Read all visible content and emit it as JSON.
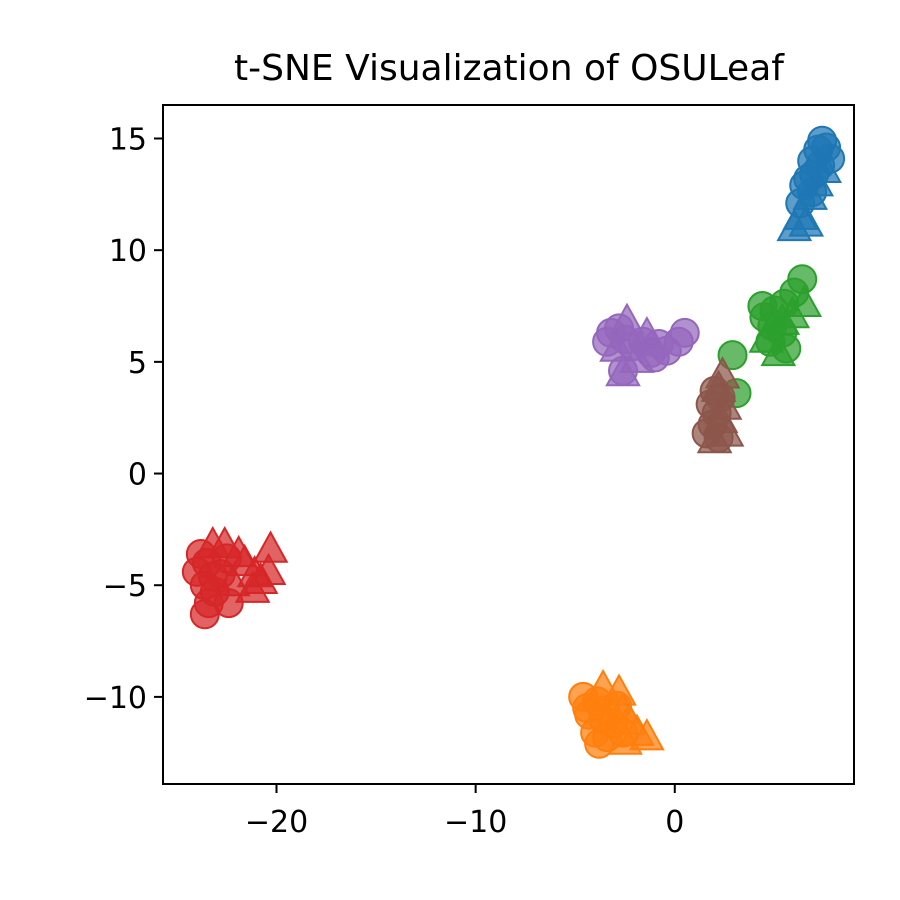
{
  "chart_data": {
    "type": "scatter",
    "title": "t-SNE Visualization of OSULeaf",
    "xlabel": "",
    "ylabel": "",
    "xlim": [
      -25.7,
      9.0
    ],
    "ylim": [
      -13.9,
      16.5
    ],
    "xticks": [
      -20,
      -10,
      0
    ],
    "yticks": [
      -10,
      -5,
      0,
      5,
      10,
      15
    ],
    "xtick_labels": [
      "−20",
      "−10",
      "0"
    ],
    "ytick_labels": [
      "−10",
      "−5",
      "0",
      "5",
      "10",
      "15"
    ],
    "grid": false,
    "legend": "none",
    "marker_shapes": [
      "circle",
      "triangle"
    ],
    "series": [
      {
        "color": "#1f77b4",
        "points": [
          [
            7.4,
            14.9,
            "c"
          ],
          [
            7.6,
            14.6,
            "c"
          ],
          [
            7.2,
            14.5,
            "c"
          ],
          [
            7.8,
            14.1,
            "c"
          ],
          [
            6.9,
            14.0,
            "c"
          ],
          [
            7.3,
            13.8,
            "c"
          ],
          [
            7.0,
            13.4,
            "c"
          ],
          [
            6.7,
            13.2,
            "c"
          ],
          [
            6.5,
            12.9,
            "c"
          ],
          [
            6.9,
            12.6,
            "c"
          ],
          [
            6.3,
            12.1,
            "c"
          ],
          [
            7.5,
            13.6,
            "t"
          ],
          [
            7.1,
            13.0,
            "t"
          ],
          [
            6.8,
            12.4,
            "t"
          ],
          [
            6.3,
            11.5,
            "t"
          ],
          [
            6.0,
            11.0,
            "t"
          ],
          [
            6.6,
            11.2,
            "t"
          ]
        ]
      },
      {
        "color": "#ff7f0e",
        "points": [
          [
            -4.6,
            -10.0,
            "c"
          ],
          [
            -4.3,
            -10.8,
            "c"
          ],
          [
            -4.4,
            -10.5,
            "c"
          ],
          [
            -3.9,
            -10.2,
            "c"
          ],
          [
            -3.6,
            -11.0,
            "c"
          ],
          [
            -4.0,
            -11.6,
            "c"
          ],
          [
            -3.8,
            -12.1,
            "c"
          ],
          [
            -3.4,
            -11.8,
            "c"
          ],
          [
            -3.1,
            -11.2,
            "c"
          ],
          [
            -3.5,
            -10.6,
            "c"
          ],
          [
            -2.9,
            -10.4,
            "c"
          ],
          [
            -2.6,
            -11.6,
            "c"
          ],
          [
            -3.6,
            -9.6,
            "t"
          ],
          [
            -2.8,
            -9.8,
            "t"
          ],
          [
            -2.6,
            -10.6,
            "t"
          ],
          [
            -2.3,
            -11.1,
            "t"
          ],
          [
            -1.9,
            -11.6,
            "t"
          ],
          [
            -1.4,
            -11.8,
            "t"
          ],
          [
            -2.5,
            -12.0,
            "t"
          ]
        ]
      },
      {
        "color": "#2ca02c",
        "points": [
          [
            6.4,
            8.7,
            "c"
          ],
          [
            6.0,
            8.1,
            "c"
          ],
          [
            5.5,
            7.6,
            "c"
          ],
          [
            5.0,
            7.3,
            "c"
          ],
          [
            4.5,
            7.0,
            "c"
          ],
          [
            4.4,
            7.5,
            "c"
          ],
          [
            4.9,
            6.6,
            "c"
          ],
          [
            5.4,
            6.3,
            "c"
          ],
          [
            4.8,
            5.9,
            "c"
          ],
          [
            5.6,
            5.6,
            "c"
          ],
          [
            2.9,
            5.3,
            "c"
          ],
          [
            3.1,
            3.6,
            "c"
          ],
          [
            6.5,
            7.6,
            "t"
          ],
          [
            5.9,
            7.1,
            "t"
          ],
          [
            5.4,
            6.8,
            "t"
          ],
          [
            4.6,
            6.0,
            "t"
          ],
          [
            5.2,
            5.4,
            "t"
          ]
        ]
      },
      {
        "color": "#d62728",
        "points": [
          [
            -23.8,
            -3.6,
            "c"
          ],
          [
            -24.0,
            -4.4,
            "c"
          ],
          [
            -23.5,
            -4.0,
            "c"
          ],
          [
            -23.2,
            -4.6,
            "c"
          ],
          [
            -23.6,
            -5.0,
            "c"
          ],
          [
            -23.1,
            -5.3,
            "c"
          ],
          [
            -23.4,
            -5.8,
            "c"
          ],
          [
            -23.6,
            -6.3,
            "c"
          ],
          [
            -22.4,
            -5.8,
            "c"
          ],
          [
            -22.8,
            -4.5,
            "c"
          ],
          [
            -22.5,
            -3.8,
            "c"
          ],
          [
            -22.6,
            -3.2,
            "t"
          ],
          [
            -21.9,
            -3.6,
            "t"
          ],
          [
            -21.6,
            -4.0,
            "t"
          ],
          [
            -21.1,
            -4.5,
            "t"
          ],
          [
            -20.3,
            -3.4,
            "t"
          ],
          [
            -20.4,
            -4.4,
            "t"
          ],
          [
            -20.8,
            -4.8,
            "t"
          ],
          [
            -21.2,
            -5.2,
            "t"
          ],
          [
            -22.2,
            -4.9,
            "t"
          ],
          [
            -23.2,
            -3.2,
            "t"
          ]
        ]
      },
      {
        "color": "#9467bd",
        "points": [
          [
            -3.2,
            6.3,
            "c"
          ],
          [
            -2.8,
            6.5,
            "c"
          ],
          [
            -2.5,
            6.0,
            "c"
          ],
          [
            -2.1,
            5.7,
            "c"
          ],
          [
            -1.6,
            5.9,
            "c"
          ],
          [
            -1.2,
            5.4,
            "c"
          ],
          [
            -0.8,
            5.8,
            "c"
          ],
          [
            -0.4,
            5.5,
            "c"
          ],
          [
            0.2,
            5.9,
            "c"
          ],
          [
            0.5,
            6.3,
            "c"
          ],
          [
            -2.6,
            4.6,
            "c"
          ],
          [
            -1.0,
            5.2,
            "c"
          ],
          [
            -3.4,
            5.9,
            "c"
          ],
          [
            -2.4,
            6.8,
            "t"
          ],
          [
            -2.6,
            4.5,
            "t"
          ],
          [
            -1.9,
            5.1,
            "t"
          ],
          [
            -1.4,
            6.2,
            "t"
          ],
          [
            -2.9,
            5.6,
            "t"
          ]
        ]
      },
      {
        "color": "#8c564b",
        "points": [
          [
            1.6,
            1.8,
            "c"
          ],
          [
            1.9,
            2.2,
            "c"
          ],
          [
            2.1,
            2.7,
            "c"
          ],
          [
            1.8,
            3.1,
            "c"
          ],
          [
            2.3,
            3.4,
            "c"
          ],
          [
            2.0,
            3.7,
            "c"
          ],
          [
            2.2,
            1.6,
            "c"
          ],
          [
            2.4,
            4.4,
            "t"
          ],
          [
            2.2,
            3.8,
            "t"
          ],
          [
            2.5,
            3.0,
            "t"
          ],
          [
            2.3,
            2.4,
            "t"
          ],
          [
            2.6,
            1.8,
            "t"
          ],
          [
            2.0,
            1.5,
            "t"
          ]
        ]
      }
    ]
  }
}
